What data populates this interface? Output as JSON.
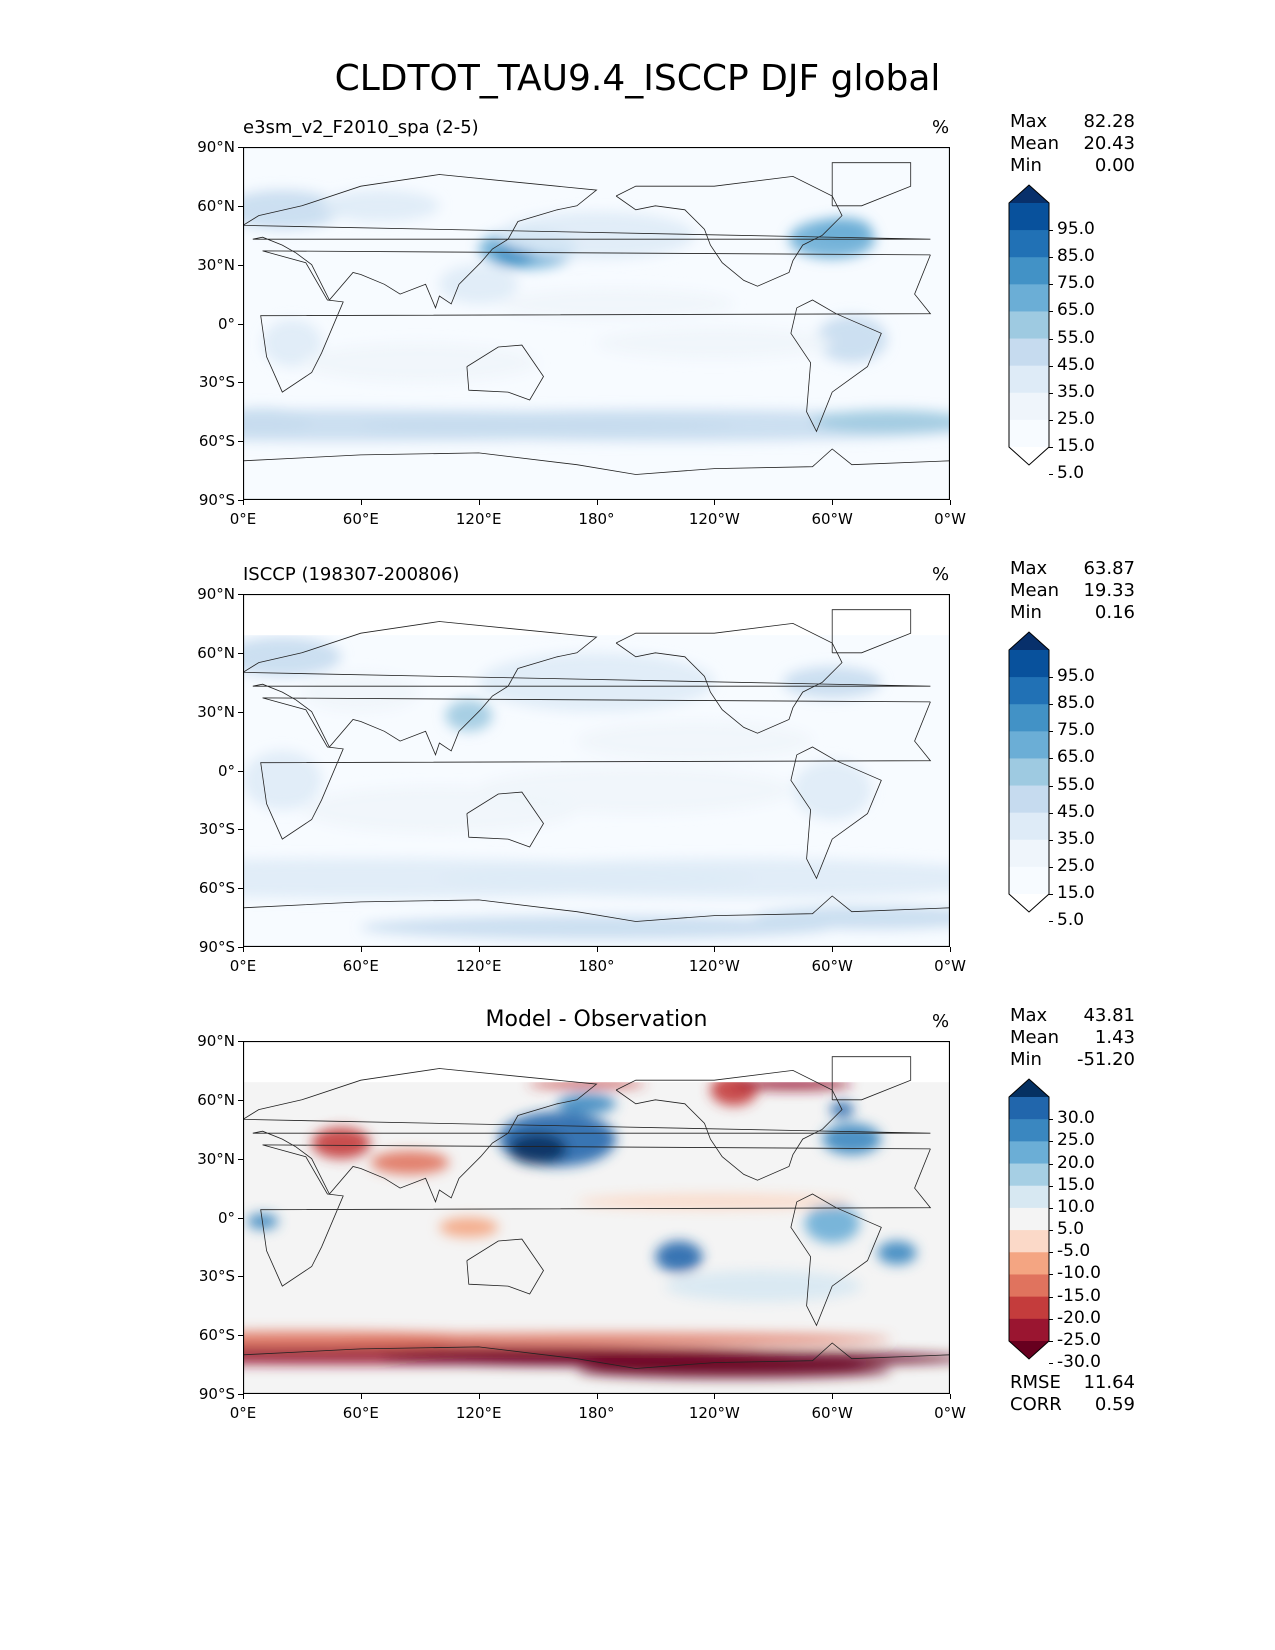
{
  "figure_title": "CLDTOT_TAU9.4_ISCCP DJF global",
  "lat_ticks": [
    "90°N",
    "60°N",
    "30°N",
    "0°",
    "30°S",
    "60°S",
    "90°S"
  ],
  "lon_ticks": [
    "0°E",
    "60°E",
    "120°E",
    "180°",
    "120°W",
    "60°W",
    "0°W"
  ],
  "chart_data": [
    {
      "type": "heatmap",
      "title": "e3sm_v2_F2010_spa (2-5)",
      "unit": "%",
      "stats": {
        "max_label": "Max",
        "max": "82.28",
        "mean_label": "Mean",
        "mean": "20.43",
        "min_label": "Min",
        "min": "0.00"
      },
      "colorbar": {
        "labels": [
          "95.0",
          "85.0",
          "75.0",
          "65.0",
          "55.0",
          "45.0",
          "35.0",
          "25.0",
          "15.0",
          "5.0"
        ],
        "colors": [
          "#08306b",
          "#08519c",
          "#2171b5",
          "#4292c6",
          "#6baed6",
          "#9ecae1",
          "#c6dbef",
          "#deebf7",
          "#eff5fb",
          "#f7fbff",
          "#ffffff"
        ]
      }
    },
    {
      "type": "heatmap",
      "title": "ISCCP (198307-200806)",
      "unit": "%",
      "stats": {
        "max_label": "Max",
        "max": "63.87",
        "mean_label": "Mean",
        "mean": "19.33",
        "min_label": "Min",
        "min": "0.16"
      },
      "colorbar": {
        "labels": [
          "95.0",
          "85.0",
          "75.0",
          "65.0",
          "55.0",
          "45.0",
          "35.0",
          "25.0",
          "15.0",
          "5.0"
        ],
        "colors": [
          "#08306b",
          "#08519c",
          "#2171b5",
          "#4292c6",
          "#6baed6",
          "#9ecae1",
          "#c6dbef",
          "#deebf7",
          "#eff5fb",
          "#f7fbff",
          "#ffffff"
        ]
      }
    },
    {
      "type": "heatmap",
      "title": "Model - Observation",
      "unit": "%",
      "stats": {
        "max_label": "Max",
        "max": "43.81",
        "mean_label": "Mean",
        "mean": "1.43",
        "min_label": "Min",
        "min": "-51.20"
      },
      "colorbar": {
        "labels": [
          "30.0",
          "25.0",
          "20.0",
          "15.0",
          "10.0",
          "5.0",
          "-5.0",
          "-10.0",
          "-15.0",
          "-20.0",
          "-25.0",
          "-30.0"
        ],
        "colors": [
          "#053061",
          "#2166ac",
          "#3a87c0",
          "#6baed6",
          "#a6cfe4",
          "#d7e8f2",
          "#f4f4f4",
          "#fbd9c8",
          "#f4a582",
          "#e0735e",
          "#c43c3c",
          "#9a1530",
          "#67001f"
        ]
      },
      "metrics": {
        "rmse_label": "RMSE",
        "rmse": "11.64",
        "corr_label": "CORR",
        "corr": "0.59"
      }
    }
  ]
}
